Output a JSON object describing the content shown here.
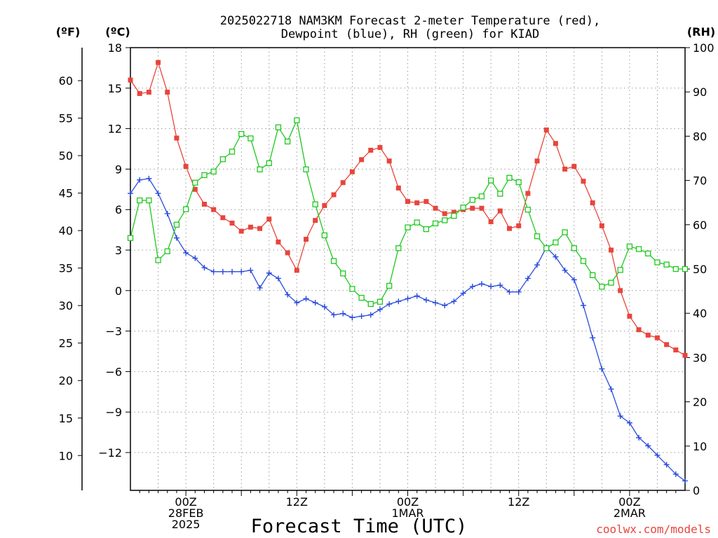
{
  "title_line1": "2025022718 NAM3KM Forecast 2-meter Temperature (red),",
  "title_line2": "Dewpoint (blue), RH (green) for KIAD",
  "label_f": "(ºF)",
  "label_c": "(ºC)",
  "label_rh": "(RH)",
  "xlabel": "Forecast Time (UTC)",
  "credit": "coolwx.com/models",
  "colors": {
    "temp": "#e8453c",
    "dewpoint": "#2a4bdc",
    "rh": "#1ec81e",
    "grid": "#999999"
  },
  "chart_data": {
    "type": "line",
    "x_unit": "forecast hour",
    "xlim": [
      0,
      60
    ],
    "ylim_c": [
      -14.5,
      18
    ],
    "ylim_rh": [
      0,
      100
    ],
    "x_ticks": [
      {
        "x": 6,
        "lines": [
          "00Z",
          "28FEB",
          "2025"
        ]
      },
      {
        "x": 18,
        "lines": [
          "12Z"
        ]
      },
      {
        "x": 30,
        "lines": [
          "00Z",
          "1MAR"
        ]
      },
      {
        "x": 42,
        "lines": [
          "12Z"
        ]
      },
      {
        "x": 54,
        "lines": [
          "00Z",
          "2MAR"
        ]
      }
    ],
    "y_ticks_c": [
      18,
      15,
      12,
      9,
      6,
      3,
      0,
      -3,
      -6,
      -9,
      -12
    ],
    "y_ticks_f": [
      60,
      55,
      50,
      45,
      40,
      35,
      30,
      25,
      20,
      15,
      10
    ],
    "y_ticks_rh": [
      100,
      90,
      80,
      70,
      60,
      50,
      40,
      30,
      20,
      10,
      0
    ],
    "series": [
      {
        "name": "Temperature",
        "unit": "C",
        "marker": "square-filled",
        "values": [
          15.6,
          14.6,
          14.7,
          16.9,
          14.7,
          11.3,
          9.2,
          7.5,
          6.4,
          6.0,
          5.4,
          5.0,
          4.4,
          4.7,
          4.6,
          5.3,
          3.6,
          2.8,
          1.5,
          3.8,
          5.2,
          6.3,
          7.1,
          8.0,
          8.8,
          9.7,
          10.4,
          10.6,
          9.6,
          7.6,
          6.6,
          6.5,
          6.6,
          6.1,
          5.7,
          5.8,
          6.0,
          6.1,
          6.1,
          5.1,
          5.9,
          4.6,
          4.8,
          7.2,
          9.6,
          11.9,
          10.9,
          9.0,
          9.2,
          8.1,
          6.5,
          4.8,
          3.0,
          0.0,
          -1.9,
          -2.9,
          -3.3,
          -3.5,
          -4.0,
          -4.4,
          -4.8
        ]
      },
      {
        "name": "Dewpoint",
        "unit": "C",
        "marker": "plus",
        "values": [
          7.2,
          8.2,
          8.3,
          7.2,
          5.7,
          3.9,
          2.8,
          2.4,
          1.7,
          1.4,
          1.4,
          1.4,
          1.4,
          1.5,
          0.2,
          1.3,
          0.9,
          -0.3,
          -0.9,
          -0.6,
          -0.9,
          -1.2,
          -1.8,
          -1.7,
          -2.0,
          -1.9,
          -1.8,
          -1.4,
          -1.0,
          -0.8,
          -0.6,
          -0.4,
          -0.7,
          -0.9,
          -1.1,
          -0.8,
          -0.2,
          0.3,
          0.5,
          0.3,
          0.4,
          -0.1,
          -0.1,
          0.9,
          1.9,
          3.2,
          2.5,
          1.5,
          0.8,
          -1.1,
          -3.5,
          -5.8,
          -7.3,
          -9.3,
          -9.8,
          -10.9,
          -11.5,
          -12.2,
          -12.9,
          -13.6,
          -14.1
        ]
      },
      {
        "name": "RH",
        "unit": "%",
        "marker": "square-open",
        "values": [
          57,
          65.5,
          65.5,
          52,
          54,
          60,
          63.5,
          69.5,
          71.2,
          72,
          74.8,
          76.5,
          80.5,
          79.5,
          72.5,
          73.9,
          82,
          78.8,
          83.6,
          72.5,
          64.6,
          57.6,
          51.8,
          49,
          45.5,
          43.5,
          42.1,
          42.6,
          46.2,
          54.7,
          59.4,
          60.5,
          59,
          60.3,
          61,
          62,
          63.9,
          65.6,
          66.4,
          70,
          67,
          70.6,
          69.6,
          63.4,
          57.4,
          54.7,
          56,
          58.3,
          54.7,
          51.8,
          48.6,
          46,
          46.9,
          49.8,
          55.1,
          54.5,
          53.5,
          51.5,
          51,
          50,
          50
        ]
      }
    ]
  }
}
